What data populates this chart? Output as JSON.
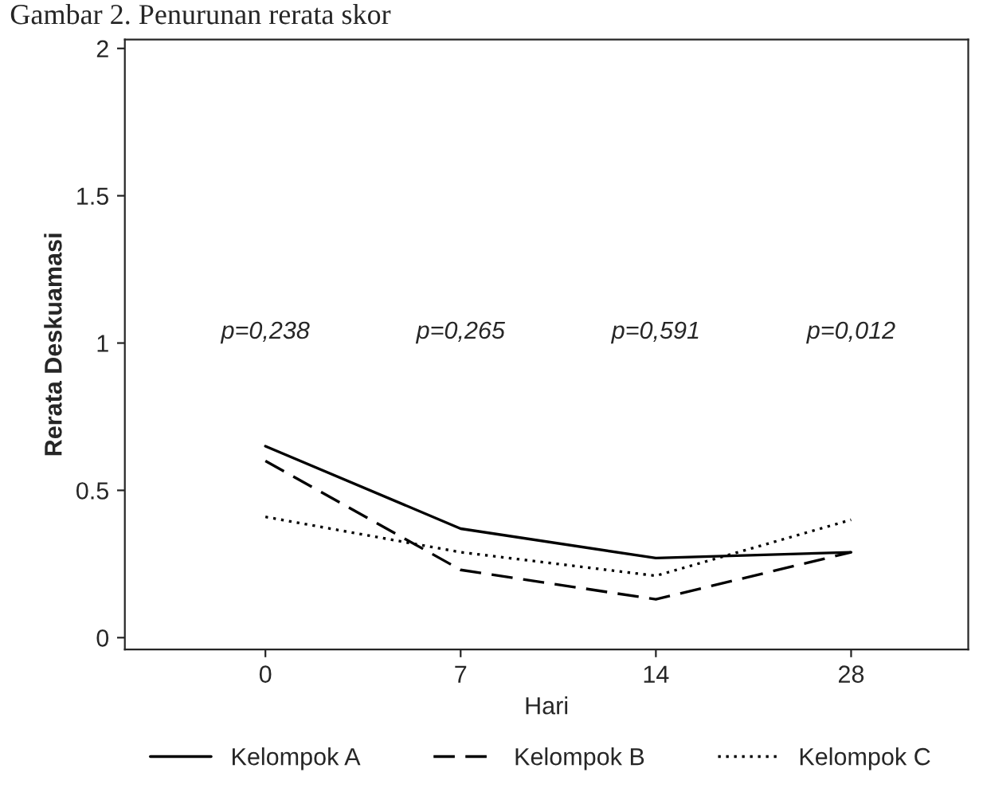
{
  "chart_data": {
    "type": "line",
    "title": "Gambar 2. Penurunan rerata skor",
    "xlabel": "Hari",
    "ylabel": "Rerata Deskuamasi",
    "categories": [
      "0",
      "7",
      "14",
      "28"
    ],
    "series": [
      {
        "name": "Kelompok A",
        "color": "#000000",
        "line_style": "solid",
        "values": [
          0.65,
          0.37,
          0.27,
          0.29
        ]
      },
      {
        "name": "Kelompok B",
        "color": "#000000",
        "line_style": "dashed",
        "values": [
          0.6,
          0.23,
          0.13,
          0.29
        ]
      },
      {
        "name": "Kelompok C",
        "color": "#000000",
        "line_style": "dotted",
        "values": [
          0.41,
          0.29,
          0.21,
          0.4
        ]
      }
    ],
    "ylim": [
      -0.04,
      2.03
    ],
    "yticks": [
      0,
      0.5,
      1,
      1.5,
      2
    ],
    "grid": false,
    "legend": "bottom",
    "marker": "none",
    "annotations": [
      "p=0,238",
      "p=0,265",
      "p=0,591",
      "p=0,012"
    ]
  }
}
